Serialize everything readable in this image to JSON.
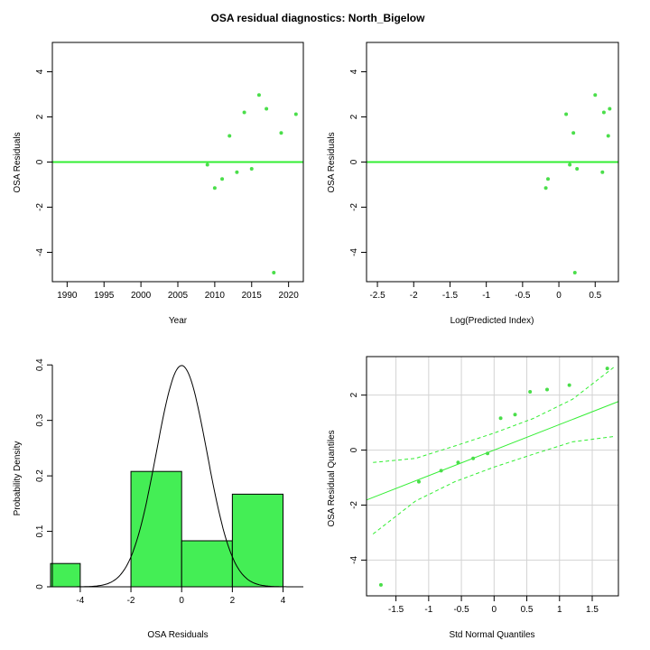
{
  "figure": {
    "title": "OSA residual diagnostics: North_Bigelow",
    "colors": {
      "points": "#4ade4a",
      "line": "#33ee33",
      "bars": "#44ee55",
      "grid": "#d3d3d3",
      "curve": "#000000"
    }
  },
  "chart_data": [
    {
      "type": "scatter",
      "xlabel": "Year",
      "ylabel": "OSA Residuals",
      "xlim": [
        1988,
        2022
      ],
      "ylim": [
        -5.3,
        5.3
      ],
      "xticks": [
        1990,
        1995,
        2000,
        2005,
        2010,
        2015,
        2020
      ],
      "yticks": [
        -4,
        -2,
        0,
        2,
        4
      ],
      "hline": 0,
      "x": [
        2009,
        2010,
        2011,
        2012,
        2013,
        2014,
        2015,
        2016,
        2017,
        2018,
        2019,
        2021
      ],
      "y": [
        -0.12,
        -1.15,
        -0.75,
        1.16,
        -0.45,
        2.2,
        -0.3,
        2.97,
        2.36,
        -4.9,
        1.29,
        2.12
      ]
    },
    {
      "type": "scatter",
      "xlabel": "Log(Predicted Index)",
      "ylabel": "OSA Residuals",
      "xlim": [
        -2.65,
        0.82
      ],
      "ylim": [
        -5.3,
        5.3
      ],
      "xticks": [
        -2.5,
        -2.0,
        -1.5,
        -1.0,
        -0.5,
        0.0,
        0.5
      ],
      "yticks": [
        -4,
        -2,
        0,
        2,
        4
      ],
      "hline": 0,
      "x": [
        -0.18,
        -0.15,
        0.1,
        0.15,
        0.2,
        0.22,
        0.25,
        0.5,
        0.6,
        0.62,
        0.68,
        0.7
      ],
      "y": [
        -1.15,
        -0.75,
        2.12,
        -0.12,
        1.29,
        -4.9,
        -0.3,
        2.97,
        -0.45,
        2.2,
        1.16,
        2.36
      ]
    },
    {
      "type": "bar",
      "subtype": "histogram",
      "xlabel": "OSA Residuals",
      "ylabel": "Probability Density",
      "xlim": [
        -5.1,
        4.8
      ],
      "ylim": [
        0,
        0.415
      ],
      "xticks": [
        -4,
        -2,
        0,
        2,
        4
      ],
      "yticks": [
        0.0,
        0.1,
        0.2,
        0.3,
        0.4
      ],
      "bins": [
        {
          "from": -6,
          "to": -4,
          "density": 0.042
        },
        {
          "from": -4,
          "to": -2,
          "density": 0.0
        },
        {
          "from": -2,
          "to": 0,
          "density": 0.208
        },
        {
          "from": 0,
          "to": 2,
          "density": 0.083
        },
        {
          "from": 2,
          "to": 4,
          "density": 0.167
        }
      ],
      "curve": {
        "distribution": "normal",
        "mean": 0,
        "sd": 1
      }
    },
    {
      "type": "scatter",
      "subtype": "qq-plot",
      "xlabel": "Std Normal Quantiles",
      "ylabel": "OSA Residual Quantiles",
      "xlim": [
        -1.95,
        1.9
      ],
      "ylim": [
        -5.3,
        3.4
      ],
      "xticks": [
        -1.5,
        -1.0,
        -0.5,
        0.0,
        0.5,
        1.0,
        1.5
      ],
      "yticks": [
        -4,
        -2,
        0,
        2
      ],
      "grid": true,
      "x": [
        -1.73,
        -1.15,
        -0.81,
        -0.55,
        -0.32,
        -0.1,
        0.1,
        0.32,
        0.55,
        0.81,
        1.15,
        1.73
      ],
      "y": [
        -4.9,
        -1.15,
        -0.75,
        -0.45,
        -0.3,
        -0.12,
        1.16,
        1.29,
        2.12,
        2.2,
        2.36,
        2.97
      ],
      "reference_line": {
        "intercept": 0.0,
        "slope": 0.93
      },
      "envelope_upper": [
        [
          -1.85,
          -0.45
        ],
        [
          -1.2,
          -0.3
        ],
        [
          -0.6,
          0.15
        ],
        [
          0.0,
          0.62
        ],
        [
          0.6,
          1.15
        ],
        [
          1.2,
          1.85
        ],
        [
          1.85,
          3.05
        ]
      ],
      "envelope_lower": [
        [
          -1.85,
          -3.05
        ],
        [
          -1.2,
          -1.85
        ],
        [
          -0.6,
          -1.15
        ],
        [
          0.0,
          -0.62
        ],
        [
          0.6,
          -0.15
        ],
        [
          1.2,
          0.3
        ],
        [
          1.85,
          0.5
        ]
      ]
    }
  ]
}
